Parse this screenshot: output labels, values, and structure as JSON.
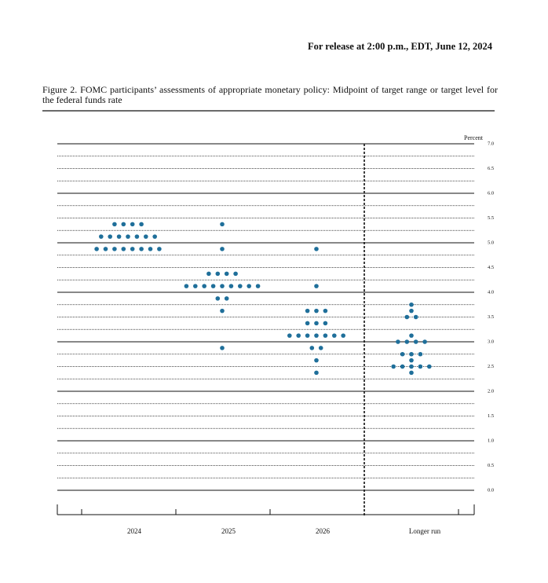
{
  "header": {
    "release": "For release at 2:00 p.m., EDT, June 12, 2024"
  },
  "chart_data": {
    "type": "dot",
    "title": "Figure 2.  FOMC participants’ assessments of appropriate monetary policy: Midpoint of target range or target level for the federal funds rate",
    "y_label": "Percent",
    "color": "#1f6f9a",
    "categories": [
      "2024",
      "2025",
      "2026",
      "Longer run"
    ],
    "values": [
      [
        5.375,
        5.375,
        5.375,
        5.375,
        5.125,
        5.125,
        5.125,
        5.125,
        5.125,
        5.125,
        5.125,
        4.875,
        4.875,
        4.875,
        4.875,
        4.875,
        4.875,
        4.875,
        4.875
      ],
      [
        5.375,
        4.875,
        4.375,
        4.375,
        4.375,
        4.375,
        4.125,
        4.125,
        4.125,
        4.125,
        4.125,
        4.125,
        4.125,
        4.125,
        4.125,
        3.875,
        3.875,
        3.625,
        2.875
      ],
      [
        4.875,
        4.125,
        3.625,
        3.625,
        3.625,
        3.375,
        3.375,
        3.375,
        3.125,
        3.125,
        3.125,
        3.125,
        3.125,
        3.125,
        3.125,
        2.875,
        2.875,
        2.625,
        2.375
      ],
      [
        3.75,
        3.625,
        3.5,
        3.5,
        3.125,
        3.0,
        3.0,
        3.0,
        3.0,
        2.75,
        2.75,
        2.75,
        2.625,
        2.5,
        2.5,
        2.5,
        2.5,
        2.5,
        2.375
      ]
    ],
    "ylim": [
      0,
      7
    ],
    "yticks": [
      {
        "value": 0,
        "label": "0.0"
      },
      0.5,
      {
        "value": 1,
        "label": "1.0"
      },
      1.5,
      {
        "value": 2,
        "label": "2.0"
      },
      2.5,
      {
        "value": 3,
        "label": "3.0"
      },
      3.5,
      {
        "value": 4,
        "label": "4.0"
      },
      4.5,
      {
        "value": 5,
        "label": "5.0"
      },
      5.5,
      {
        "value": 6,
        "label": "6.0"
      },
      6.5,
      {
        "value": 7,
        "label": "7.0"
      }
    ],
    "grid": true
  }
}
